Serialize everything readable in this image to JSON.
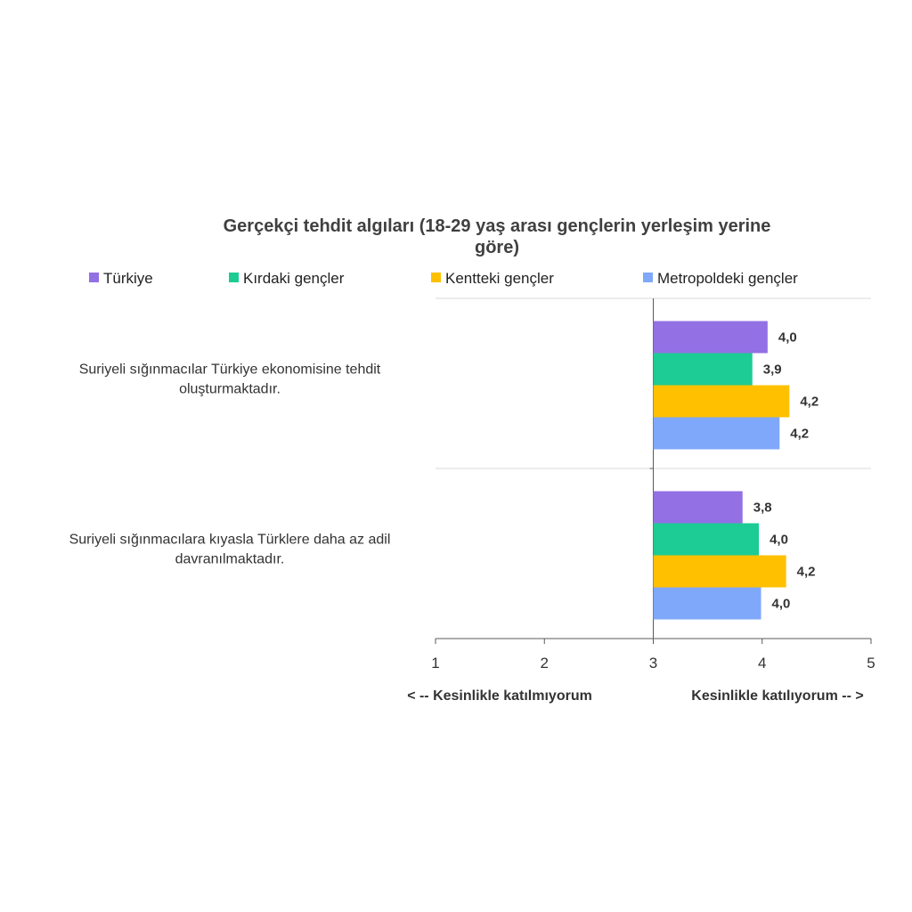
{
  "chart_data": {
    "type": "bar",
    "orientation": "horizontal",
    "title": "Gerçekçi tehdit algıları (18-29 yaş arası gençlerin yerleşim yerine göre)",
    "title_lines": [
      "Gerçekçi tehdit algıları (18-29 yaş arası gençlerin yerleşim yerine",
      "göre)"
    ],
    "categories": [
      "Suriyeli sığınmacılar Türkiye ekonomisine tehdit oluşturmaktadır.",
      "Suriyeli sığınmacılara kıyasla Türklere daha az adil davranılmaktadır."
    ],
    "category_lines": [
      [
        "Suriyeli sığınmacılar Türkiye ekonomisine tehdit",
        "oluşturmaktadır."
      ],
      [
        "Suriyeli sığınmacılara kıyasla Türklere daha az adil",
        "davranılmaktadır."
      ]
    ],
    "series": [
      {
        "name": "Türkiye",
        "color": "#9370e4",
        "values": [
          4.05,
          3.82
        ],
        "labels": [
          "4,0",
          "3,8"
        ]
      },
      {
        "name": "Kırdaki gençler",
        "color": "#1ccc94",
        "values": [
          3.91,
          3.97
        ],
        "labels": [
          "3,9",
          "4,0"
        ]
      },
      {
        "name": "Kentteki gençler",
        "color": "#ffc000",
        "values": [
          4.25,
          4.22
        ],
        "labels": [
          "4,2",
          "4,2"
        ]
      },
      {
        "name": "Metropoldeki gençler",
        "color": "#7fa8fa",
        "values": [
          4.16,
          3.99
        ],
        "labels": [
          "4,2",
          "4,0"
        ]
      }
    ],
    "xlim": [
      1,
      5
    ],
    "xticks": [
      "1",
      "2",
      "3",
      "4",
      "5"
    ],
    "bar_origin": 3,
    "axis_extremes": {
      "left": "< -- Kesinlikle katılmıyorum",
      "right": "Kesinlikle katılıyorum -- >"
    },
    "legend_position": "top",
    "grid": false
  }
}
